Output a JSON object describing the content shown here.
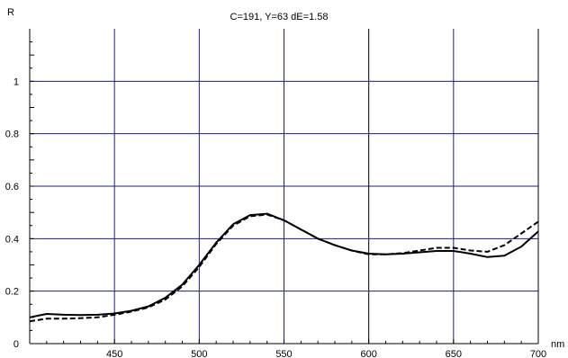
{
  "chart_data": {
    "type": "line",
    "title": "C=191, Y=63 dE=1.58",
    "xlabel": "nm",
    "ylabel": "R",
    "xlim": [
      400,
      700
    ],
    "ylim": [
      0,
      1.2
    ],
    "xticks": [
      450,
      500,
      550,
      600,
      650,
      700
    ],
    "yticks": [
      0,
      0.2,
      0.4,
      0.6,
      0.8,
      1
    ],
    "ytick_labels": [
      "0",
      "0.2",
      "0.4",
      "0.6",
      "0.8",
      "1"
    ],
    "grid": true,
    "colors": {
      "grid": "#1a1a8c",
      "midline": "#000000",
      "line": "#000000"
    },
    "series": [
      {
        "style": "solid",
        "x": [
          400,
          410,
          420,
          430,
          440,
          450,
          460,
          470,
          480,
          490,
          500,
          510,
          520,
          530,
          540,
          550,
          560,
          570,
          580,
          590,
          600,
          610,
          620,
          630,
          640,
          650,
          660,
          670,
          680,
          690,
          700
        ],
        "y": [
          0.1,
          0.113,
          0.11,
          0.109,
          0.11,
          0.115,
          0.125,
          0.142,
          0.175,
          0.225,
          0.3,
          0.385,
          0.455,
          0.49,
          0.495,
          0.47,
          0.435,
          0.4,
          0.375,
          0.355,
          0.343,
          0.34,
          0.343,
          0.348,
          0.353,
          0.353,
          0.343,
          0.33,
          0.335,
          0.37,
          0.428
        ]
      },
      {
        "style": "dashed",
        "x": [
          400,
          410,
          420,
          430,
          440,
          450,
          460,
          470,
          480,
          490,
          500,
          510,
          520,
          530,
          540,
          550,
          560,
          570,
          580,
          590,
          600,
          610,
          620,
          630,
          640,
          650,
          660,
          670,
          680,
          690,
          700
        ],
        "y": [
          0.085,
          0.095,
          0.095,
          0.097,
          0.1,
          0.11,
          0.122,
          0.138,
          0.168,
          0.218,
          0.292,
          0.38,
          0.45,
          0.485,
          0.492,
          0.47,
          0.435,
          0.4,
          0.375,
          0.355,
          0.34,
          0.34,
          0.345,
          0.355,
          0.365,
          0.365,
          0.355,
          0.35,
          0.375,
          0.42,
          0.465
        ]
      }
    ]
  }
}
